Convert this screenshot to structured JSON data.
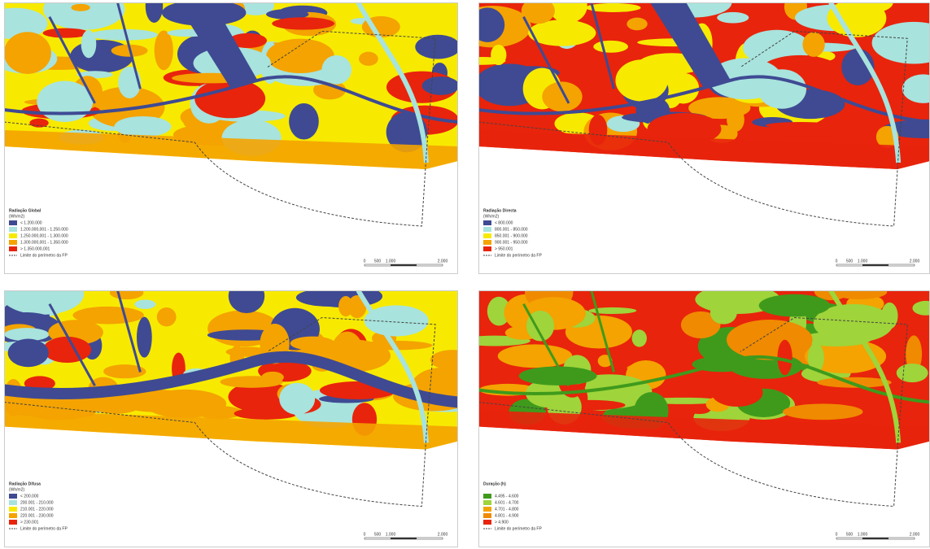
{
  "panels": [
    {
      "title": "Radiação Global",
      "unit": "(Wh/m2)",
      "legend": [
        {
          "label": "< 1.200.000",
          "color": "#3f4a93"
        },
        {
          "label": "1.200.000,001 - 1.250.000",
          "color": "#a8e3dd"
        },
        {
          "label": "1.250.000,001 - 1.300.000",
          "color": "#f7ea00"
        },
        {
          "label": "1.300.000,001 - 1.350.000",
          "color": "#f4a300"
        },
        {
          "label": "> 1.350.000,001",
          "color": "#e8240c"
        }
      ],
      "boundary_label": "Limite do perímetro da FP",
      "scale_labels": [
        "0",
        "500",
        "1.000",
        "2.000"
      ]
    },
    {
      "title": "Radiação Directa",
      "unit": "(Wh/m2)",
      "legend": [
        {
          "label": "< 800.000",
          "color": "#3f4a93"
        },
        {
          "label": "800.001 - 850.000",
          "color": "#a8e3dd"
        },
        {
          "label": "850.001 - 900.000",
          "color": "#f7ea00"
        },
        {
          "label": "900.001 - 950.000",
          "color": "#f4a300"
        },
        {
          "label": "> 950.001",
          "color": "#e8240c"
        }
      ],
      "boundary_label": "Limite do perímetro da FP",
      "scale_labels": [
        "0",
        "500",
        "1.000",
        "2.000"
      ]
    },
    {
      "title": "Radiação Difusa",
      "unit": "(Wh/m2)",
      "legend": [
        {
          "label": "< 200.000",
          "color": "#3f4a93"
        },
        {
          "label": "200.001 - 210.000",
          "color": "#a8e3dd"
        },
        {
          "label": "210.001 - 220.000",
          "color": "#f7ea00"
        },
        {
          "label": "220.001 - 230.000",
          "color": "#f4a300"
        },
        {
          "label": "> 230.001",
          "color": "#e8240c"
        }
      ],
      "boundary_label": "Limite do perímetro da FP",
      "scale_labels": [
        "0",
        "500",
        "1.000",
        "2.000"
      ]
    },
    {
      "title": "Duração (h)",
      "unit": "",
      "legend": [
        {
          "label": "4.495 - 4.600",
          "color": "#3f9a1c"
        },
        {
          "label": "4.601 - 4.700",
          "color": "#9fd43a"
        },
        {
          "label": "4.701 - 4.800",
          "color": "#f4a300"
        },
        {
          "label": "4.801 - 4.900",
          "color": "#f08a00"
        },
        {
          "label": "> 4.900",
          "color": "#e8240c"
        }
      ],
      "boundary_label": "Limite do perímetro da FP",
      "scale_labels": [
        "0",
        "500",
        "1.000",
        "2.000"
      ]
    }
  ]
}
